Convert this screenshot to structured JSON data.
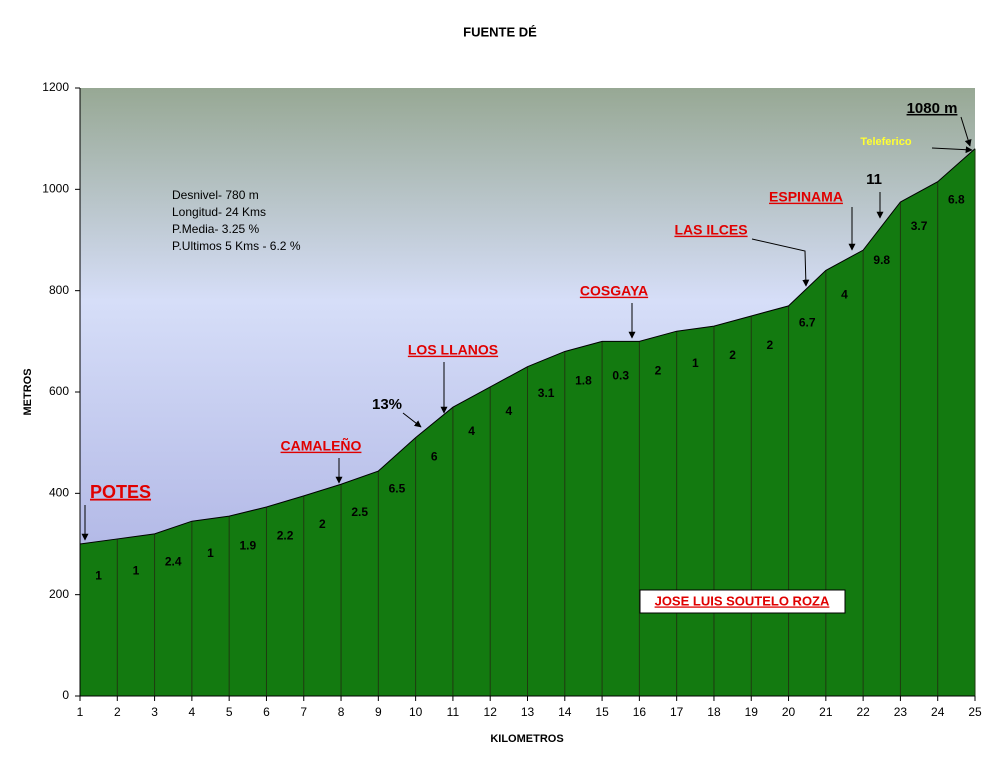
{
  "chart_data": {
    "type": "area",
    "title": "FUENTE  DÉ",
    "xlabel": "KILOMETROS",
    "ylabel": "METROS",
    "x": [
      1,
      2,
      3,
      4,
      5,
      6,
      7,
      8,
      9,
      10,
      11,
      12,
      13,
      14,
      15,
      16,
      17,
      18,
      19,
      20,
      21,
      22,
      23,
      24,
      25
    ],
    "values": [
      300,
      310,
      320,
      345,
      355,
      373,
      395,
      418,
      444,
      510,
      570,
      610,
      650,
      680,
      700,
      700,
      720,
      730,
      750,
      770,
      840,
      880,
      975,
      1015,
      1080
    ],
    "grades": [
      1,
      1,
      2.4,
      1,
      1.9,
      2.2,
      2,
      2.5,
      6.5,
      6,
      4,
      4,
      3.1,
      1.8,
      0.3,
      2,
      1,
      2,
      2,
      6.7,
      4,
      9.8,
      3.7,
      6.8
    ],
    "xlim": [
      1,
      25
    ],
    "ylim": [
      0,
      1200
    ],
    "xticks": [
      1,
      2,
      3,
      4,
      5,
      6,
      7,
      8,
      9,
      10,
      11,
      12,
      13,
      14,
      15,
      16,
      17,
      18,
      19,
      20,
      21,
      22,
      23,
      24,
      25
    ],
    "yticks": [
      0,
      200,
      400,
      600,
      800,
      1000,
      1200
    ],
    "color": "#6cbf2a",
    "stats": [
      "Desnivel- 780 m",
      "Longitud- 24 Kms",
      "P.Media- 3.25 %",
      "P.Ultimos 5 Kms - 6.2 %"
    ],
    "annotations": [
      "POTES",
      "CAMALEÑO",
      "LOS LLANOS",
      "13%",
      "COSGAYA",
      "LAS ILCES",
      "ESPINAMA",
      "11",
      "1080 m",
      "Teleferico"
    ],
    "author": "JOSE LUIS SOUTELO ROZA"
  }
}
